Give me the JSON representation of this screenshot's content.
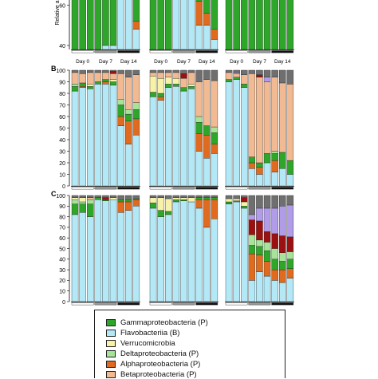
{
  "colors": {
    "gamma": "#2ea62a",
    "flavo": "#b3e8f6",
    "verruco": "#f7f2a8",
    "delta": "#a7e49a",
    "alpha": "#e06b1f",
    "beta": "#f2ba92",
    "dark_red": "#9b1010",
    "purple": "#b09ce8",
    "grey": "#6f6f6f"
  },
  "chart_data": [
    {
      "panel": "A",
      "type": "bar",
      "stacked": true,
      "ylabel": "Relative a",
      "y_ticks": [
        "40",
        "60"
      ],
      "x_labels": [
        "Day 0",
        "Day 7",
        "Day 14"
      ],
      "visible_ylim": [
        38,
        65
      ],
      "groups": [
        {
          "bars": [
            {
              "gamma": 100
            },
            {
              "gamma": 100
            },
            {
              "gamma": 100
            },
            {
              "gamma": 63,
              "flavo": 37
            },
            {
              "gamma": 60,
              "flavo": 40
            },
            {
              "gamma": 60,
              "flavo": 40
            },
            {
              "gamma": 31,
              "flavo": 69
            },
            {
              "gamma": 35,
              "flavo": 63,
              "alpha": 2
            },
            {
              "gamma": 48,
              "alpha": 4,
              "flavo": 48
            }
          ]
        },
        {
          "bars": [
            {
              "gamma": 100
            },
            {
              "gamma": 100
            },
            {
              "gamma": 100
            },
            {
              "gamma": 5,
              "flavo": 95
            },
            {
              "gamma": 8,
              "flavo": 92
            },
            {
              "gamma": 6,
              "flavo": 94
            },
            {
              "gamma": 38,
              "alpha": 12,
              "flavo": 50
            },
            {
              "gamma": 44,
              "alpha": 6,
              "flavo": 50
            },
            {
              "gamma": 52,
              "alpha": 5,
              "flavo": 43
            }
          ]
        },
        {
          "bars": [
            {
              "gamma": 100
            },
            {
              "gamma": 100
            },
            {
              "gamma": 100
            },
            {
              "gamma": 100
            },
            {
              "gamma": 100
            },
            {
              "gamma": 100
            },
            {
              "gamma": 100
            },
            {
              "gamma": 100
            },
            {
              "gamma": 100
            }
          ]
        }
      ]
    },
    {
      "panel": "B",
      "type": "bar",
      "stacked": true,
      "ylim": [
        0,
        100
      ],
      "y_ticks": [
        "0",
        "10",
        "20",
        "30",
        "40",
        "50",
        "60",
        "70",
        "80",
        "90",
        "100"
      ],
      "groups": [
        {
          "bars": [
            {
              "flavo": 82,
              "gamma": 4,
              "delta": 2,
              "beta": 10,
              "grey": 2
            },
            {
              "flavo": 85,
              "gamma": 3,
              "beta": 8,
              "alpha": 1,
              "grey": 3
            },
            {
              "flavo": 84,
              "gamma": 2,
              "verruco": 2,
              "beta": 10,
              "grey": 2
            },
            {
              "flavo": 88,
              "gamma": 2,
              "beta": 8,
              "grey": 2
            },
            {
              "flavo": 88,
              "gamma": 2,
              "alpha": 2,
              "beta": 6,
              "grey": 2
            },
            {
              "flavo": 87,
              "gamma": 3,
              "verruco": 2,
              "beta": 5,
              "dark_red": 2,
              "grey": 1
            },
            {
              "flavo": 52,
              "gamma": 10,
              "delta": 5,
              "alpha": 8,
              "beta": 22,
              "grey": 3
            },
            {
              "flavo": 36,
              "gamma": 6,
              "delta": 4,
              "alpha": 20,
              "beta": 28,
              "grey": 6
            },
            {
              "flavo": 44,
              "gamma": 8,
              "delta": 6,
              "alpha": 14,
              "beta": 24,
              "grey": 4
            }
          ]
        },
        {
          "bars": [
            {
              "flavo": 77,
              "gamma": 4,
              "beta": 3,
              "verruco": 14,
              "grey": 2
            },
            {
              "flavo": 74,
              "gamma": 3,
              "alpha": 3,
              "beta": 5,
              "verruco": 13,
              "grey": 2
            },
            {
              "flavo": 85,
              "gamma": 3,
              "beta": 4,
              "verruco": 6,
              "grey": 2
            },
            {
              "flavo": 86,
              "gamma": 2,
              "beta": 5,
              "verruco": 5,
              "grey": 2
            },
            {
              "flavo": 82,
              "gamma": 3,
              "beta": 8,
              "dark_red": 4,
              "grey": 3
            },
            {
              "flavo": 84,
              "gamma": 2,
              "beta": 10,
              "verruco": 2,
              "grey": 2
            },
            {
              "flavo": 30,
              "gamma": 10,
              "delta": 5,
              "alpha": 15,
              "beta": 30,
              "grey": 10
            },
            {
              "flavo": 24,
              "gamma": 8,
              "alpha": 20,
              "beta": 40,
              "grey": 8
            },
            {
              "flavo": 28,
              "gamma": 10,
              "delta": 5,
              "alpha": 8,
              "beta": 40,
              "grey": 9
            }
          ]
        },
        {
          "bars": [
            {
              "flavo": 90,
              "gamma": 2,
              "beta": 6,
              "grey": 2
            },
            {
              "flavo": 92,
              "gamma": 2,
              "beta": 3,
              "purple": 1,
              "grey": 2
            },
            {
              "flavo": 85,
              "gamma": 3,
              "beta": 8,
              "grey": 4
            },
            {
              "flavo": 15,
              "gamma": 5,
              "alpha": 5,
              "beta": 72,
              "grey": 3
            },
            {
              "flavo": 10,
              "gamma": 4,
              "alpha": 6,
              "beta": 74,
              "dark_red": 2,
              "grey": 4
            },
            {
              "flavo": 20,
              "gamma": 8,
              "beta": 62,
              "purple": 4,
              "grey": 6
            },
            {
              "flavo": 12,
              "gamma": 6,
              "delta": 2,
              "alpha": 10,
              "beta": 64,
              "grey": 6
            },
            {
              "flavo": 15,
              "gamma": 14,
              "beta": 60,
              "grey": 11
            },
            {
              "flavo": 10,
              "gamma": 12,
              "beta": 66,
              "grey": 12
            }
          ]
        }
      ]
    },
    {
      "panel": "C",
      "type": "bar",
      "stacked": true,
      "ylim": [
        0,
        100
      ],
      "y_ticks": [
        "0",
        "10",
        "20",
        "30",
        "40",
        "50",
        "60",
        "70",
        "80",
        "90",
        "100"
      ],
      "groups": [
        {
          "bars": [
            {
              "flavo": 82,
              "gamma": 10,
              "delta": 4,
              "verruco": 2,
              "grey": 2
            },
            {
              "flavo": 84,
              "gamma": 8,
              "delta": 2,
              "verruco": 4,
              "grey": 2
            },
            {
              "flavo": 80,
              "gamma": 12,
              "delta": 4,
              "beta": 2,
              "grey": 2
            },
            {
              "flavo": 96,
              "gamma": 2,
              "grey": 2
            },
            {
              "flavo": 95,
              "gamma": 1,
              "dark_red": 2,
              "grey": 2
            },
            {
              "flavo": 96,
              "verruco": 2,
              "grey": 2
            },
            {
              "alpha": 10,
              "flavo": 84,
              "gamma": 2,
              "grey": 4
            },
            {
              "alpha": 8,
              "flavo": 86,
              "gamma": 2,
              "grey": 4
            },
            {
              "alpha": 6,
              "flavo": 90,
              "gamma": 1,
              "grey": 3
            }
          ]
        },
        {
          "bars": [
            {
              "flavo": 88,
              "gamma": 5,
              "verruco": 5,
              "grey": 2
            },
            {
              "flavo": 80,
              "gamma": 6,
              "verruco": 12,
              "grey": 2
            },
            {
              "flavo": 82,
              "gamma": 3,
              "verruco": 12,
              "grey": 3
            },
            {
              "flavo": 94,
              "gamma": 2,
              "verruco": 2,
              "grey": 2
            },
            {
              "flavo": 95,
              "gamma": 1,
              "verruco": 2,
              "grey": 2
            },
            {
              "flavo": 94,
              "verruco": 4,
              "grey": 2
            },
            {
              "alpha": 8,
              "flavo": 88,
              "gamma": 2,
              "grey": 2
            },
            {
              "alpha": 26,
              "flavo": 70,
              "gamma": 2,
              "grey": 2
            },
            {
              "alpha": 18,
              "flavo": 78,
              "gamma": 2,
              "grey": 2
            }
          ]
        },
        {
          "bars": [
            {
              "flavo": 92,
              "gamma": 2,
              "verruco": 3,
              "grey": 3
            },
            {
              "flavo": 94,
              "gamma": 1,
              "verruco": 2,
              "grey": 3
            },
            {
              "flavo": 88,
              "gamma": 2,
              "verruco": 4,
              "dark_red": 4,
              "grey": 2
            },
            {
              "alpha": 25,
              "flavo": 20,
              "delta": 10,
              "gamma": 8,
              "dark_red": 14,
              "purple": 5,
              "grey": 18
            },
            {
              "alpha": 16,
              "flavo": 28,
              "delta": 6,
              "gamma": 8,
              "dark_red": 18,
              "purple": 12,
              "grey": 12
            },
            {
              "alpha": 14,
              "flavo": 24,
              "delta": 8,
              "gamma": 10,
              "dark_red": 10,
              "purple": 22,
              "grey": 12
            },
            {
              "alpha": 10,
              "flavo": 20,
              "delta": 10,
              "gamma": 10,
              "dark_red": 14,
              "purple": 24,
              "grey": 12
            },
            {
              "alpha": 12,
              "flavo": 18,
              "delta": 8,
              "gamma": 8,
              "dark_red": 16,
              "purple": 28,
              "grey": 10
            },
            {
              "alpha": 9,
              "flavo": 22,
              "delta": 7,
              "gamma": 9,
              "dark_red": 14,
              "purple": 30,
              "grey": 9
            }
          ]
        }
      ]
    }
  ],
  "legend": [
    {
      "key": "gamma",
      "label": "Gammaproteobacteria (P)"
    },
    {
      "key": "flavo",
      "label": "Flavobacteriia (B)"
    },
    {
      "key": "verruco",
      "label": "Verrucomicrobia"
    },
    {
      "key": "delta",
      "label": "Deltaproteobacteria (P)"
    },
    {
      "key": "alpha",
      "label": "Alphaproteobacteria (P)"
    },
    {
      "key": "beta",
      "label": "Betaproteobacteria (P)"
    }
  ]
}
